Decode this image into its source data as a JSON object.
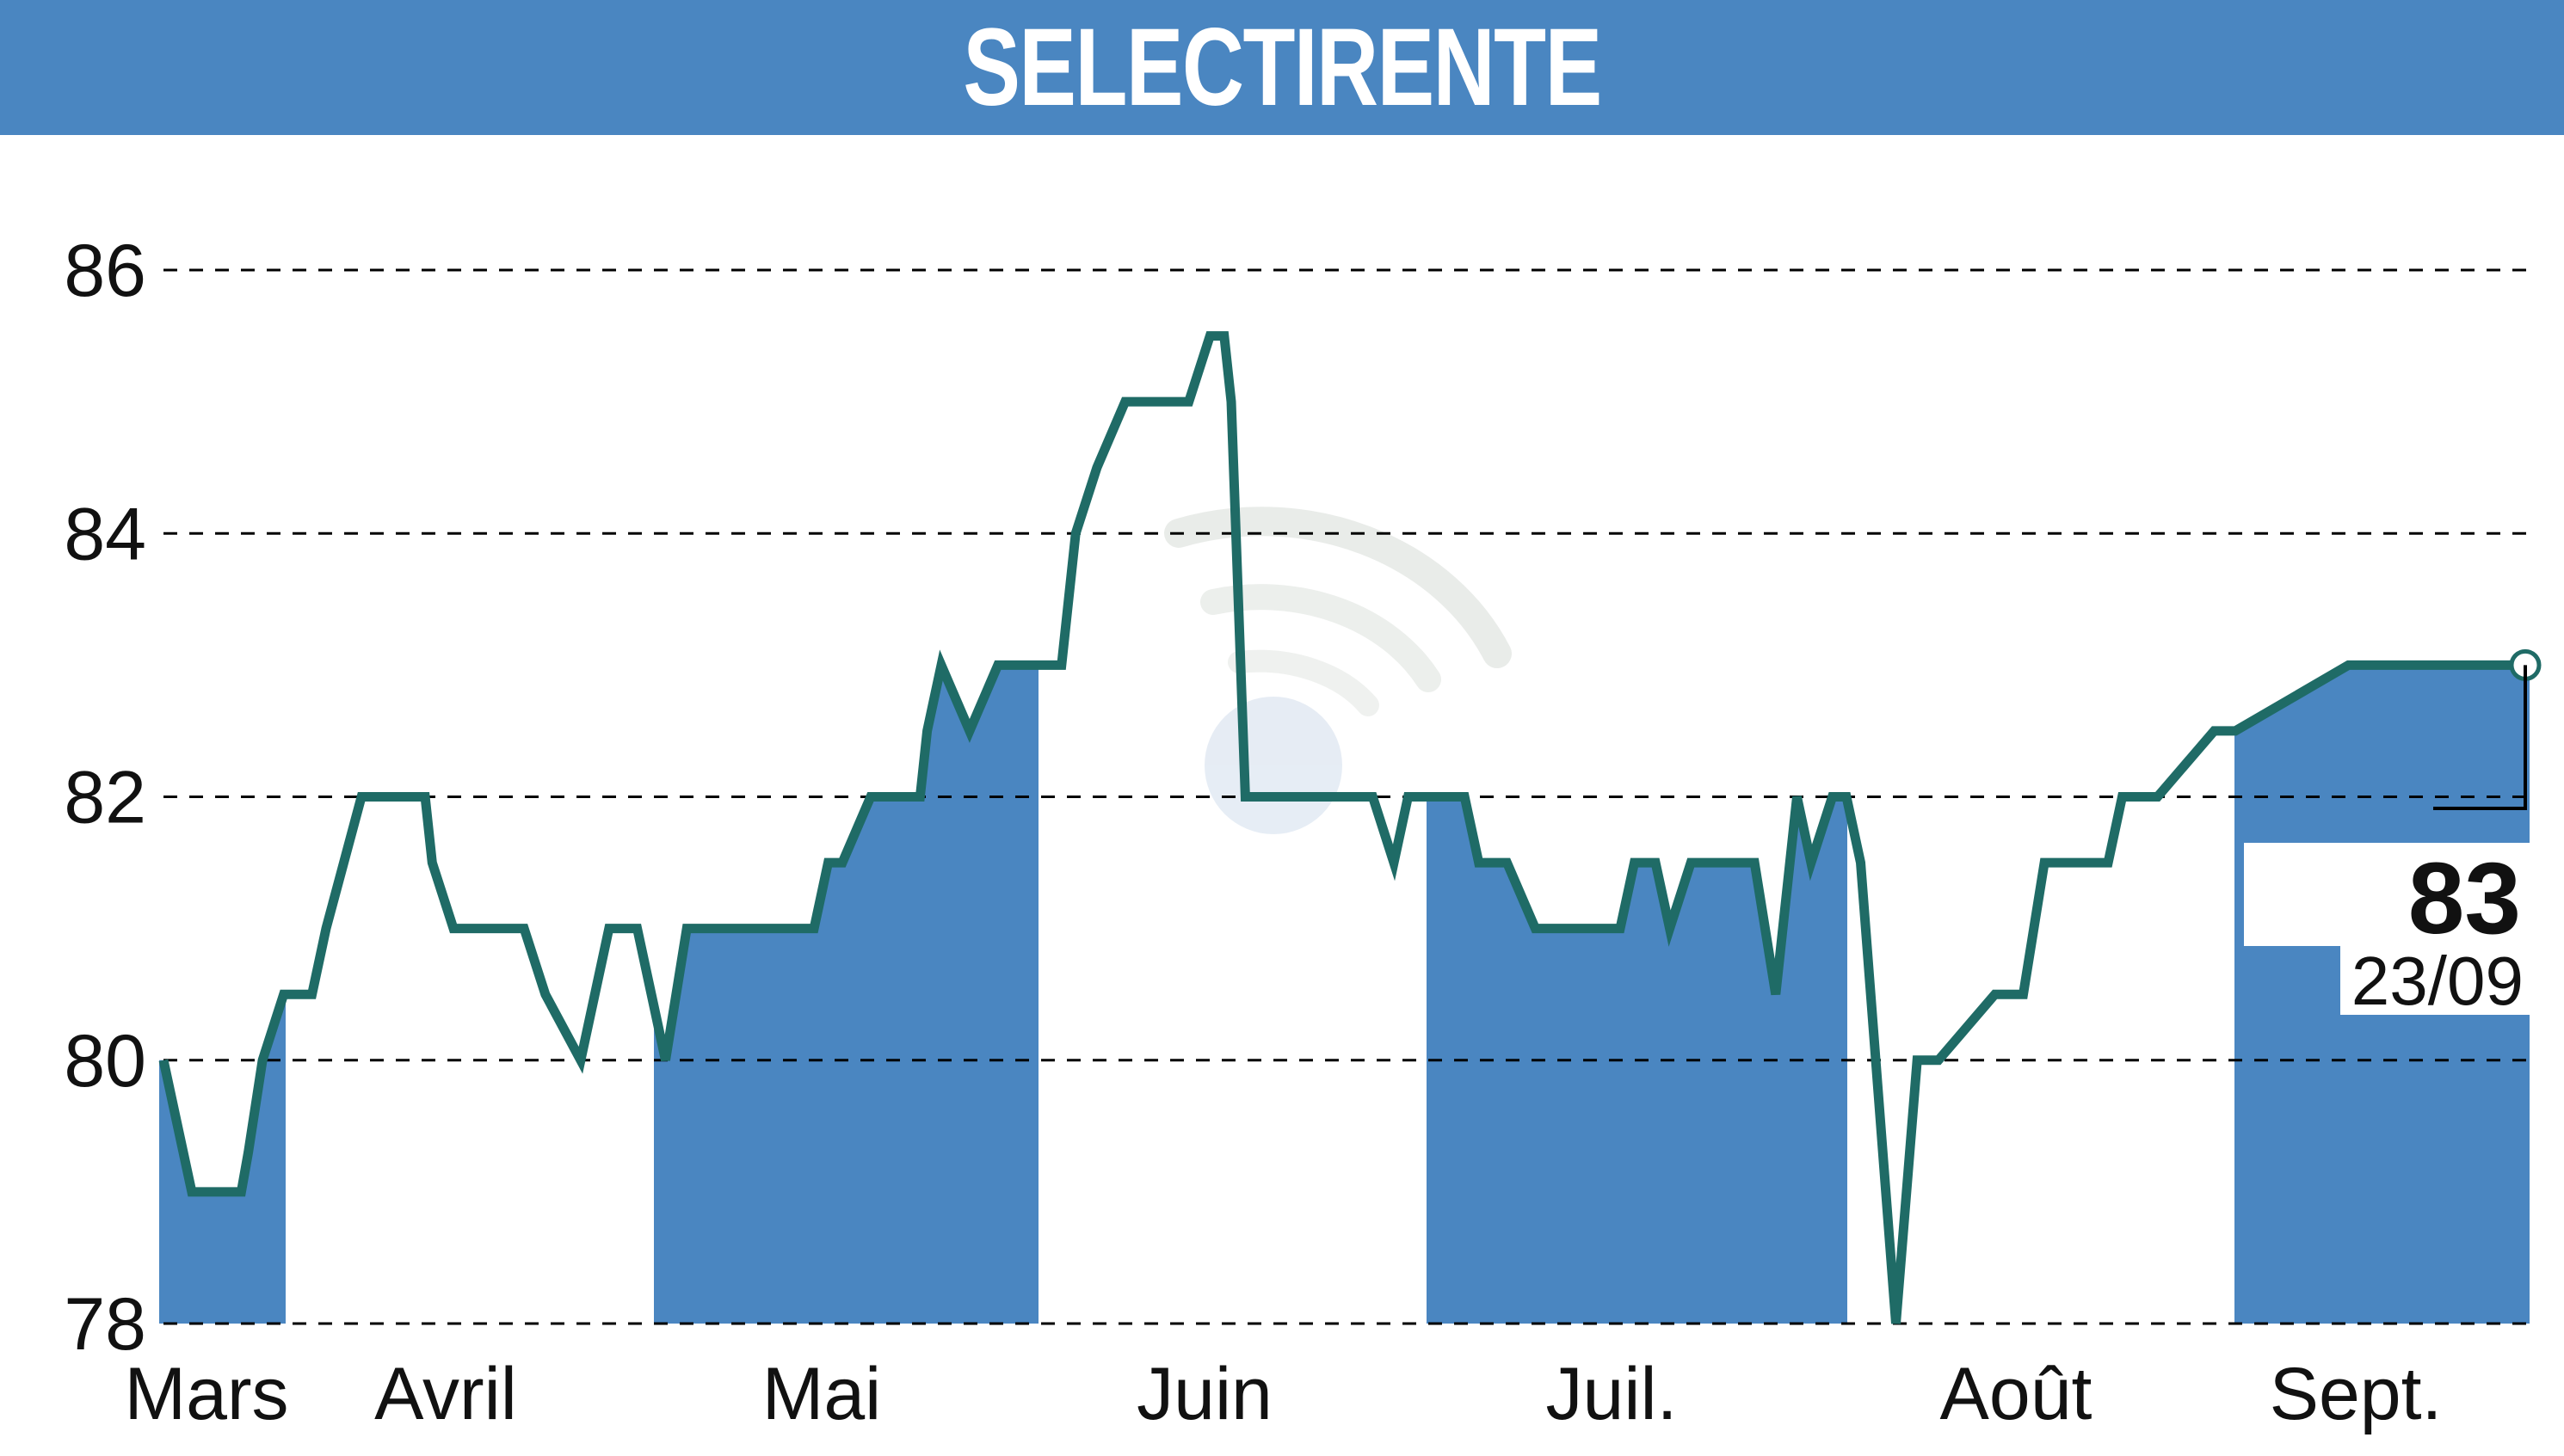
{
  "chart_data": {
    "type": "line",
    "title": "SELECTIRENTE",
    "xlabel": "",
    "ylabel": "",
    "ylim": [
      78,
      86.5
    ],
    "yticks": [
      78,
      80,
      82,
      84,
      86
    ],
    "months": [
      "Mars",
      "Avril",
      "Mai",
      "Juin",
      "Juil.",
      "Août",
      "Sept."
    ],
    "grid": "dashed horizontal",
    "shaded_month_bands": true,
    "last_value": {
      "value": "83",
      "date": "23/09"
    },
    "x": [
      0,
      4,
      5,
      11,
      12,
      14,
      17,
      21,
      23,
      28,
      37,
      38,
      41,
      45,
      46,
      50,
      51,
      54,
      59,
      63,
      64,
      67,
      71,
      74,
      76,
      89,
      92,
      94,
      96,
      100,
      101,
      104,
      107,
      108,
      110,
      114,
      118,
      119,
      127,
      129,
      132,
      136,
      138,
      142,
      145,
      148,
      150,
      151,
      153,
      163,
      169,
      171,
      174,
      176,
      179,
      184,
      186,
      190,
      194,
      196,
      198,
      206,
      208,
      211,
      213,
      216,
      219,
      223,
      225,
      228,
      231,
      233,
      236,
      238,
      240,
      245,
      248,
      251,
      259,
      263,
      266,
      275,
      277,
      282,
      290,
      293,
      309,
      311,
      334
    ],
    "values": [
      80,
      79,
      79,
      79,
      79.3,
      80,
      80.5,
      80.5,
      81,
      82,
      82,
      81.5,
      81,
      81,
      81,
      81,
      81,
      80.5,
      80,
      81,
      81,
      81,
      80,
      81,
      81,
      81,
      81,
      81.5,
      81.5,
      82,
      82,
      82,
      82,
      82.5,
      83,
      82.5,
      83,
      83,
      83,
      84,
      84.5,
      85,
      85,
      85,
      85,
      85.5,
      85.5,
      85,
      82,
      82,
      82,
      82,
      81.5,
      82,
      82,
      82,
      81.5,
      81.5,
      81,
      81,
      81,
      81,
      81.5,
      81.5,
      81,
      81.5,
      81.5,
      81.5,
      81.5,
      80.5,
      82,
      81.5,
      82,
      82,
      81.5,
      78,
      80,
      80,
      80.5,
      80.5,
      81.5,
      81.5,
      82,
      82,
      82.5,
      82.5,
      83,
      83,
      83
    ]
  }
}
